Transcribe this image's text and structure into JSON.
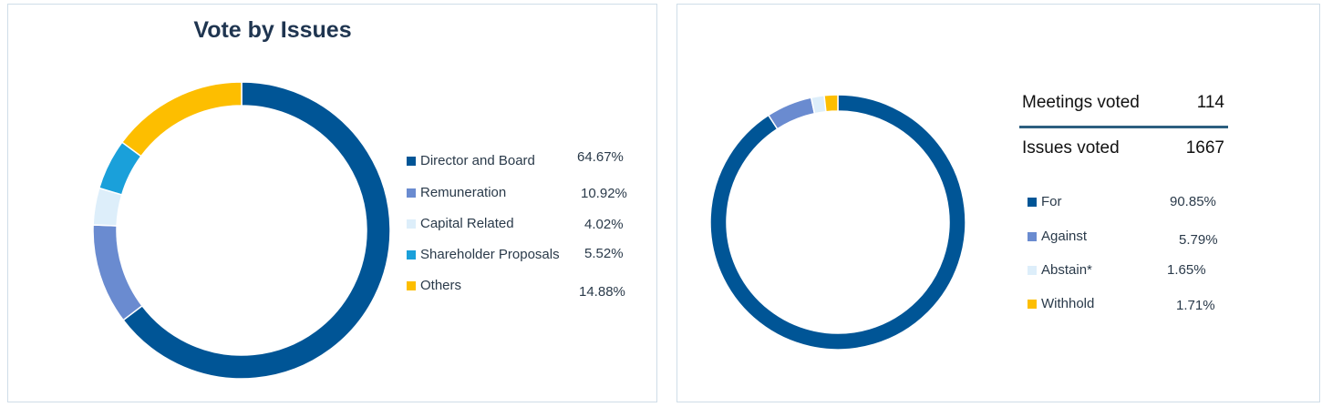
{
  "chart_data": [
    {
      "type": "pie",
      "donut": true,
      "title": "Vote by Issues",
      "categories": [
        "Director and Board",
        "Remuneration",
        "Capital Related",
        "Shareholder Proposals",
        "Others"
      ],
      "values": [
        64.67,
        10.92,
        4.02,
        5.52,
        14.88
      ],
      "labels": [
        "64.67%",
        "10.92%",
        "4.02%",
        "5.52%",
        "14.88%"
      ],
      "colors": [
        "#005596",
        "#6a8bd0",
        "#ddeefa",
        "#1aa0da",
        "#fdbe00"
      ],
      "legend": "right"
    },
    {
      "type": "pie",
      "donut": true,
      "title": "",
      "categories": [
        "For",
        "Against",
        "Abstain*",
        "Withhold"
      ],
      "values": [
        90.85,
        5.79,
        1.65,
        1.71
      ],
      "labels": [
        "90.85%",
        "5.79%",
        "1.65%",
        "1.71%"
      ],
      "colors": [
        "#005596",
        "#6a8bd0",
        "#ddeefa",
        "#fdbe00"
      ],
      "legend": "right"
    }
  ],
  "stats": {
    "meetings_label": "Meetings voted",
    "meetings_value": "114",
    "issues_label": "Issues voted",
    "issues_value": "1667"
  }
}
